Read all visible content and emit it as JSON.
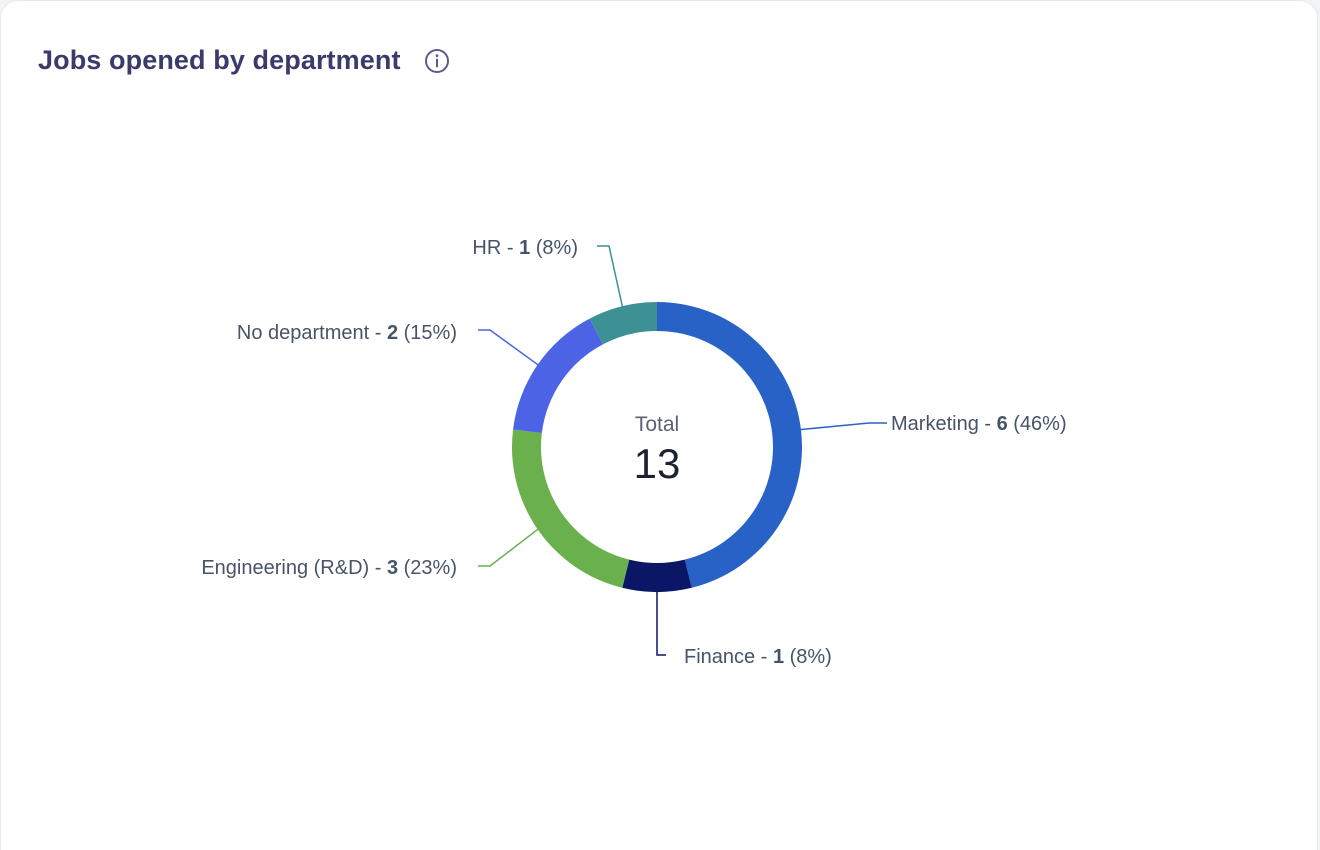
{
  "header": {
    "title": "Jobs opened by department",
    "info_icon": "info-circle-icon"
  },
  "chart_data": {
    "type": "pie",
    "variant": "donut",
    "title": "Jobs opened by department",
    "center_caption": "Total",
    "total": 13,
    "slices": [
      {
        "name": "Marketing",
        "value": 6,
        "percent": "46%",
        "color": "#2962c6",
        "label_side": "right"
      },
      {
        "name": "Finance",
        "value": 1,
        "percent": "8%",
        "color": "#0b1766",
        "label_side": "bottom"
      },
      {
        "name": "Engineering (R&D)",
        "value": 3,
        "percent": "23%",
        "color": "#6ab04c",
        "label_side": "left"
      },
      {
        "name": "No department",
        "value": 2,
        "percent": "15%",
        "color": "#4c63e6",
        "label_side": "left"
      },
      {
        "name": "HR",
        "value": 1,
        "percent": "8%",
        "color": "#3d9194",
        "label_side": "top"
      }
    ]
  }
}
